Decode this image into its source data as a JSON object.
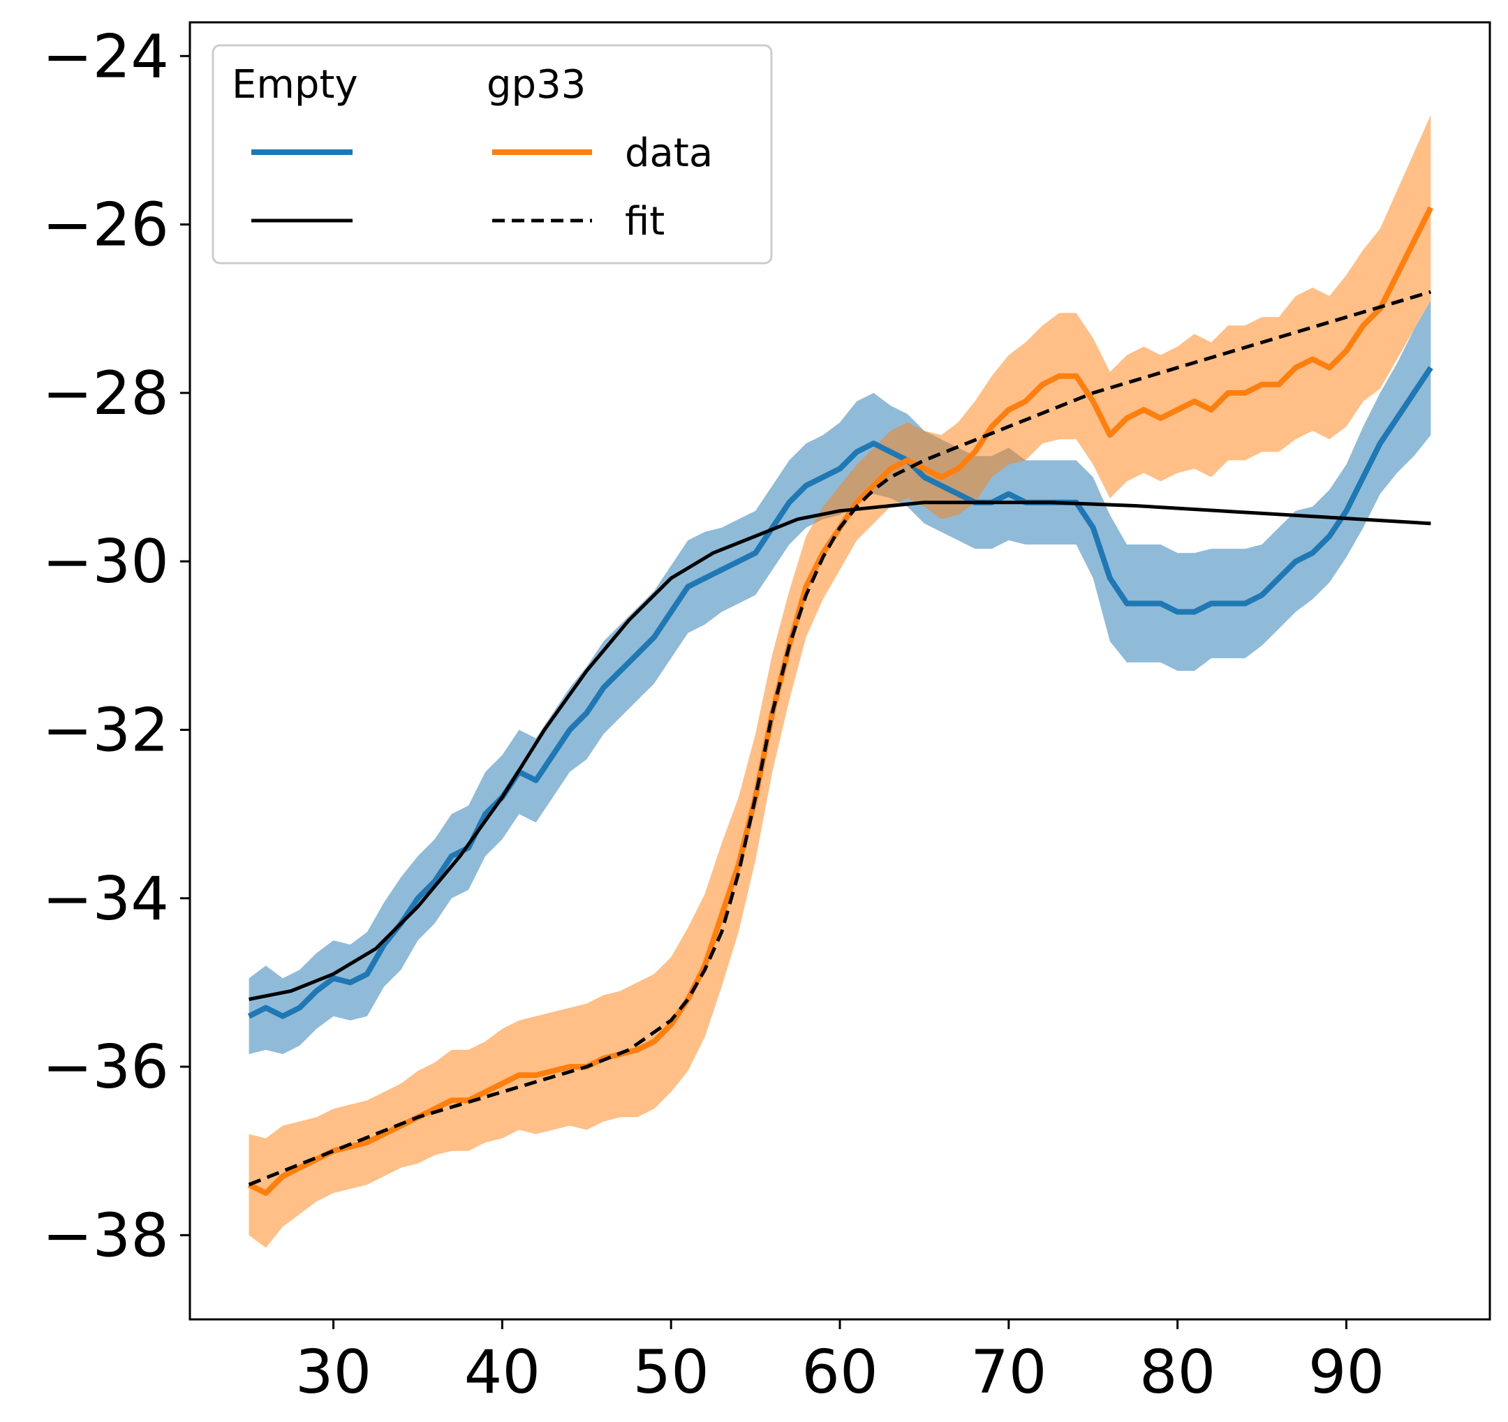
{
  "chart_data": {
    "type": "line",
    "title": "",
    "xlabel": "",
    "ylabel": "",
    "xlim": [
      21.5,
      98.5
    ],
    "ylim": [
      -39.0,
      -23.6
    ],
    "xticks": [
      30,
      40,
      50,
      60,
      70,
      80,
      90
    ],
    "yticks": [
      -24,
      -26,
      -28,
      -30,
      -32,
      -34,
      -36,
      -38
    ],
    "ytick_labels": [
      "−24",
      "−26",
      "−28",
      "−30",
      "−32",
      "−34",
      "−36",
      "−38"
    ],
    "grid": false,
    "legend": {
      "placement": "top-left",
      "column_titles": [
        "Empty",
        "gp33"
      ],
      "row_labels": [
        "data",
        "fit"
      ]
    },
    "series": [
      {
        "legend_column": "Empty",
        "kind": "data",
        "color": "#1f77b4",
        "x": [
          25,
          26,
          27,
          28,
          29,
          30,
          31,
          32,
          33,
          34,
          35,
          36,
          37,
          38,
          39,
          40,
          41,
          42,
          43,
          44,
          45,
          46,
          47,
          48,
          49,
          50,
          51,
          52,
          53,
          54,
          55,
          56,
          57,
          58,
          59,
          60,
          61,
          62,
          63,
          64,
          65,
          66,
          67,
          68,
          69,
          70,
          71,
          72,
          73,
          74,
          75,
          76,
          77,
          78,
          79,
          80,
          81,
          82,
          83,
          84,
          85,
          86,
          87,
          88,
          89,
          90,
          91,
          92,
          93,
          94,
          95
        ],
        "y": [
          -35.4,
          -35.3,
          -35.4,
          -35.3,
          -35.1,
          -34.95,
          -35.0,
          -34.9,
          -34.55,
          -34.3,
          -34.0,
          -33.8,
          -33.5,
          -33.4,
          -33.0,
          -32.8,
          -32.5,
          -32.6,
          -32.3,
          -32.0,
          -31.8,
          -31.5,
          -31.3,
          -31.1,
          -30.9,
          -30.6,
          -30.3,
          -30.2,
          -30.1,
          -30.0,
          -29.9,
          -29.6,
          -29.3,
          -29.1,
          -29.0,
          -28.9,
          -28.7,
          -28.6,
          -28.7,
          -28.8,
          -29.0,
          -29.1,
          -29.2,
          -29.3,
          -29.3,
          -29.2,
          -29.3,
          -29.3,
          -29.3,
          -29.3,
          -29.6,
          -30.2,
          -30.5,
          -30.5,
          -30.5,
          -30.6,
          -30.6,
          -30.5,
          -30.5,
          -30.5,
          -30.4,
          -30.2,
          -30.0,
          -29.9,
          -29.7,
          -29.4,
          -29.0,
          -28.6,
          -28.3,
          -28.0,
          -27.7
        ],
        "band": [
          0.45,
          0.5,
          0.45,
          0.45,
          0.45,
          0.45,
          0.45,
          0.5,
          0.5,
          0.55,
          0.5,
          0.5,
          0.5,
          0.5,
          0.5,
          0.5,
          0.5,
          0.5,
          0.5,
          0.5,
          0.55,
          0.55,
          0.55,
          0.55,
          0.55,
          0.55,
          0.55,
          0.55,
          0.5,
          0.5,
          0.5,
          0.5,
          0.5,
          0.5,
          0.5,
          0.55,
          0.6,
          0.6,
          0.55,
          0.55,
          0.55,
          0.55,
          0.55,
          0.55,
          0.55,
          0.55,
          0.5,
          0.5,
          0.5,
          0.5,
          0.6,
          0.75,
          0.7,
          0.7,
          0.7,
          0.7,
          0.7,
          0.65,
          0.65,
          0.65,
          0.6,
          0.6,
          0.6,
          0.55,
          0.55,
          0.55,
          0.6,
          0.6,
          0.65,
          0.75,
          0.8
        ]
      },
      {
        "legend_column": "gp33",
        "kind": "data",
        "color": "#ff7f0e",
        "x": [
          25,
          26,
          27,
          28,
          29,
          30,
          31,
          32,
          33,
          34,
          35,
          36,
          37,
          38,
          39,
          40,
          41,
          42,
          43,
          44,
          45,
          46,
          47,
          48,
          49,
          50,
          51,
          52,
          53,
          54,
          55,
          56,
          57,
          58,
          59,
          60,
          61,
          62,
          63,
          64,
          65,
          66,
          67,
          68,
          69,
          70,
          71,
          72,
          73,
          74,
          75,
          76,
          77,
          78,
          79,
          80,
          81,
          82,
          83,
          84,
          85,
          86,
          87,
          88,
          89,
          90,
          91,
          92,
          93,
          94,
          95
        ],
        "y": [
          -37.4,
          -37.5,
          -37.3,
          -37.2,
          -37.1,
          -37.0,
          -36.95,
          -36.9,
          -36.8,
          -36.7,
          -36.6,
          -36.5,
          -36.4,
          -36.4,
          -36.3,
          -36.2,
          -36.1,
          -36.1,
          -36.05,
          -36.0,
          -36.0,
          -35.9,
          -35.85,
          -35.8,
          -35.7,
          -35.5,
          -35.2,
          -34.8,
          -34.2,
          -33.6,
          -32.8,
          -31.8,
          -31.0,
          -30.3,
          -29.9,
          -29.6,
          -29.3,
          -29.1,
          -28.9,
          -28.8,
          -28.9,
          -29.0,
          -28.9,
          -28.7,
          -28.4,
          -28.2,
          -28.1,
          -27.9,
          -27.8,
          -27.8,
          -28.1,
          -28.5,
          -28.3,
          -28.2,
          -28.3,
          -28.2,
          -28.1,
          -28.2,
          -28.0,
          -28.0,
          -27.9,
          -27.9,
          -27.7,
          -27.6,
          -27.7,
          -27.5,
          -27.2,
          -27.0,
          -26.6,
          -26.2,
          -25.8
        ],
        "band": [
          0.6,
          0.65,
          0.6,
          0.55,
          0.5,
          0.5,
          0.5,
          0.5,
          0.5,
          0.5,
          0.55,
          0.55,
          0.6,
          0.6,
          0.6,
          0.65,
          0.65,
          0.7,
          0.7,
          0.7,
          0.75,
          0.75,
          0.75,
          0.8,
          0.8,
          0.8,
          0.85,
          0.85,
          0.85,
          0.8,
          0.75,
          0.7,
          0.65,
          0.6,
          0.55,
          0.5,
          0.45,
          0.45,
          0.45,
          0.45,
          0.45,
          0.5,
          0.55,
          0.6,
          0.6,
          0.65,
          0.7,
          0.7,
          0.75,
          0.75,
          0.75,
          0.75,
          0.75,
          0.75,
          0.75,
          0.75,
          0.8,
          0.8,
          0.8,
          0.8,
          0.8,
          0.8,
          0.85,
          0.85,
          0.85,
          0.9,
          0.9,
          0.95,
          1.0,
          1.05,
          1.1
        ]
      },
      {
        "legend_column": "Empty",
        "kind": "fit",
        "color": "#000000",
        "dash": "solid",
        "x": [
          25,
          27.5,
          30,
          32.5,
          35,
          37.5,
          40,
          42.5,
          45,
          47.5,
          50,
          52.5,
          55,
          57.5,
          60,
          62.5,
          65,
          67.5,
          70,
          72.5,
          75,
          77.5,
          80,
          82.5,
          85,
          87.5,
          90,
          92.5,
          95
        ],
        "y": [
          -35.2,
          -35.1,
          -34.9,
          -34.6,
          -34.1,
          -33.5,
          -32.8,
          -32.0,
          -31.3,
          -30.7,
          -30.2,
          -29.9,
          -29.7,
          -29.5,
          -29.4,
          -29.35,
          -29.3,
          -29.3,
          -29.3,
          -29.3,
          -29.32,
          -29.34,
          -29.37,
          -29.4,
          -29.43,
          -29.46,
          -29.49,
          -29.52,
          -29.55
        ]
      },
      {
        "legend_column": "gp33",
        "kind": "fit",
        "color": "#000000",
        "dash": "dashed",
        "x": [
          25,
          27.5,
          30,
          32.5,
          35,
          37.5,
          40,
          42.5,
          45,
          47.5,
          50,
          51,
          52,
          53,
          54,
          55,
          56,
          57,
          58,
          59,
          60,
          61,
          62,
          63,
          64,
          65,
          67.5,
          70,
          72.5,
          75,
          77.5,
          80,
          82.5,
          85,
          87.5,
          90,
          92.5,
          95
        ],
        "y": [
          -37.4,
          -37.2,
          -37.0,
          -36.8,
          -36.6,
          -36.45,
          -36.3,
          -36.15,
          -36.0,
          -35.8,
          -35.45,
          -35.2,
          -34.85,
          -34.4,
          -33.7,
          -32.8,
          -31.8,
          -31.0,
          -30.4,
          -29.95,
          -29.6,
          -29.35,
          -29.15,
          -29.0,
          -28.9,
          -28.8,
          -28.6,
          -28.4,
          -28.2,
          -28.0,
          -27.85,
          -27.7,
          -27.55,
          -27.4,
          -27.25,
          -27.1,
          -26.95,
          -26.8
        ]
      }
    ]
  }
}
